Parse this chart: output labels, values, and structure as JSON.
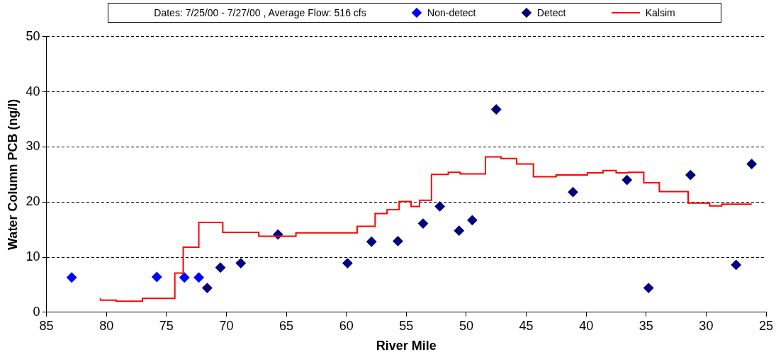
{
  "chart_data": {
    "type": "scatter",
    "xlabel": "River Mile",
    "ylabel": "Water Column PCB (ng/l)",
    "legend_title": "Dates: 7/25/00 - 7/27/00 , Average Flow: 516 cfs",
    "legend": "top",
    "grid": "y",
    "xlim": [
      85,
      25
    ],
    "xticks": [
      85,
      80,
      75,
      70,
      65,
      60,
      55,
      50,
      45,
      40,
      35,
      30,
      25
    ],
    "ylim": [
      0,
      50
    ],
    "yticks": [
      0,
      10,
      20,
      30,
      40,
      50
    ],
    "series": [
      {
        "name": "Non-detect",
        "marker": "diamond",
        "color": "#0000ff",
        "x": [
          82.9,
          75.8,
          73.5,
          72.3
        ],
        "values": [
          6.3,
          6.4,
          6.3,
          6.3
        ]
      },
      {
        "name": "Detect",
        "marker": "diamond",
        "color": "#000080",
        "x": [
          71.6,
          70.5,
          68.8,
          65.7,
          59.9,
          57.9,
          55.7,
          53.6,
          52.2,
          50.6,
          49.5,
          47.5,
          41.1,
          36.6,
          34.8,
          31.3,
          27.5,
          26.2
        ],
        "values": [
          4.4,
          8.1,
          8.9,
          14.1,
          8.9,
          12.8,
          12.9,
          16.1,
          19.2,
          14.8,
          16.7,
          36.8,
          21.8,
          24.0,
          4.4,
          24.9,
          8.6,
          26.9
        ]
      },
      {
        "name": "Kalsim",
        "type": "step",
        "marker": "none",
        "color": "#ff0000",
        "x": [
          80.5,
          79.2,
          77.0,
          74.3,
          73.6,
          72.3,
          70.3,
          67.3,
          64.2,
          59.1,
          57.6,
          56.6,
          55.6,
          54.6,
          53.9,
          52.9,
          51.5,
          50.5,
          48.4,
          47.1,
          45.8,
          44.4,
          42.5,
          39.9,
          38.6,
          37.5,
          36.5,
          35.2,
          33.9,
          31.5,
          29.7,
          28.7,
          27.5,
          26.2
        ],
        "values": [
          2.5,
          2.2,
          2.0,
          2.5,
          7.1,
          11.8,
          16.3,
          14.5,
          13.8,
          14.4,
          15.6,
          17.9,
          18.6,
          20.1,
          19.2,
          20.3,
          25.0,
          25.4,
          25.1,
          28.2,
          27.9,
          26.9,
          24.6,
          24.9,
          25.3,
          25.7,
          25.3,
          25.4,
          23.5,
          21.9,
          19.8,
          19.3,
          19.6,
          19.6
        ]
      }
    ]
  }
}
